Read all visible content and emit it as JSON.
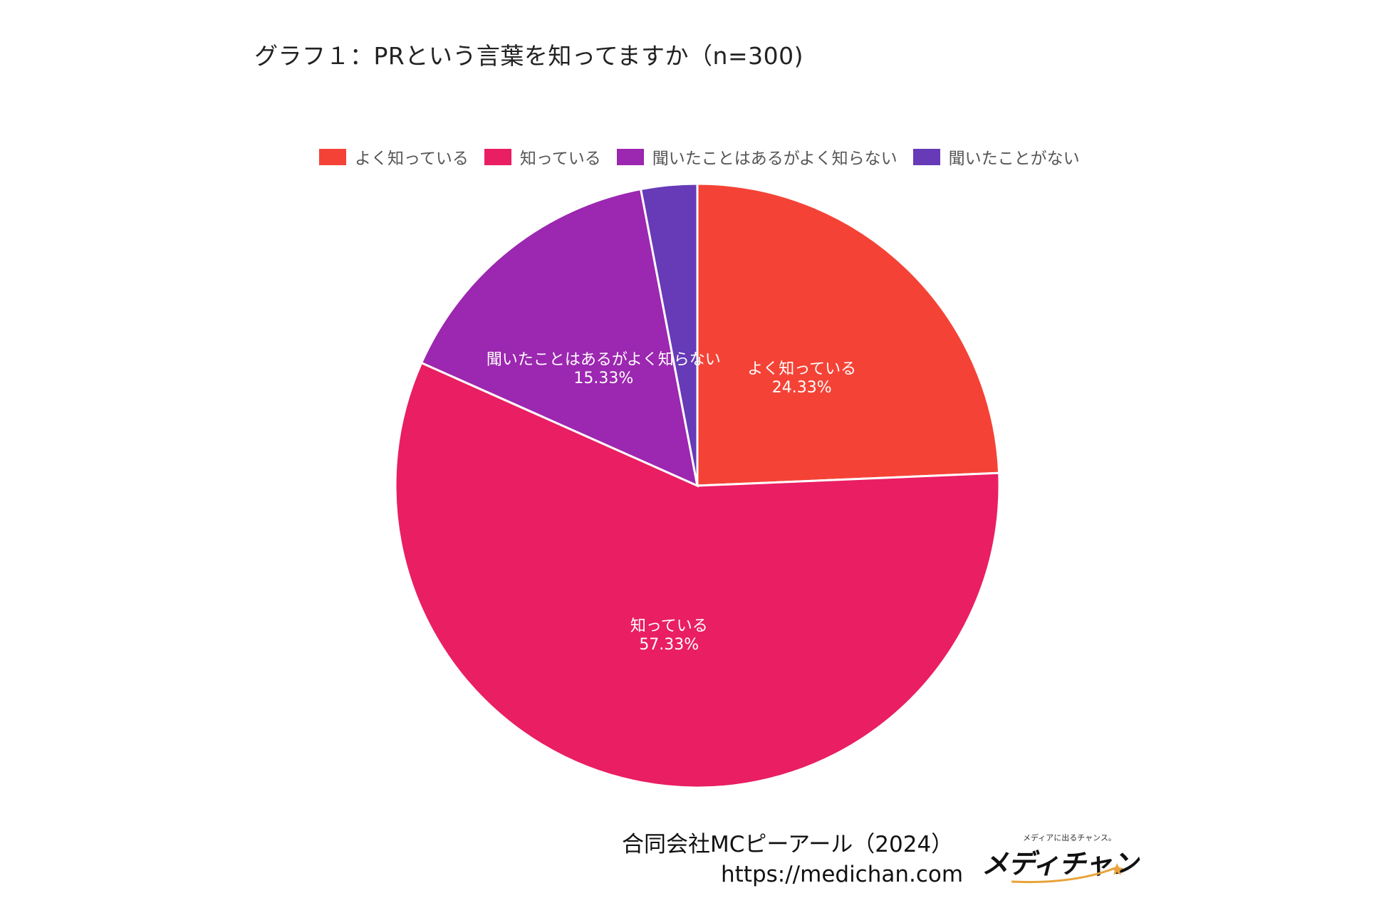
{
  "chart_data": {
    "type": "pie",
    "title": "グラフ１：PRという言葉を知ってますか（n=300)",
    "legend_position": "top",
    "slices": [
      {
        "label": "よく知っている",
        "value": 24.33,
        "value_label": "24.33%",
        "color": "#F44336"
      },
      {
        "label": "知っている",
        "value": 57.33,
        "value_label": "57.33%",
        "color": "#E91E63"
      },
      {
        "label": "聞いたことはあるがよく知らない",
        "value": 15.33,
        "value_label": "15.33%",
        "color": "#9C27B0"
      },
      {
        "label": "聞いたことがない",
        "value": 3.0,
        "value_label": "",
        "color": "#673AB7"
      }
    ]
  },
  "credit": {
    "company": "合同会社MCピーアール（2024）",
    "url": "https://medichan.com"
  },
  "logo": {
    "tagline": "メディアに出るチャンス。",
    "text": "メディチャン"
  }
}
